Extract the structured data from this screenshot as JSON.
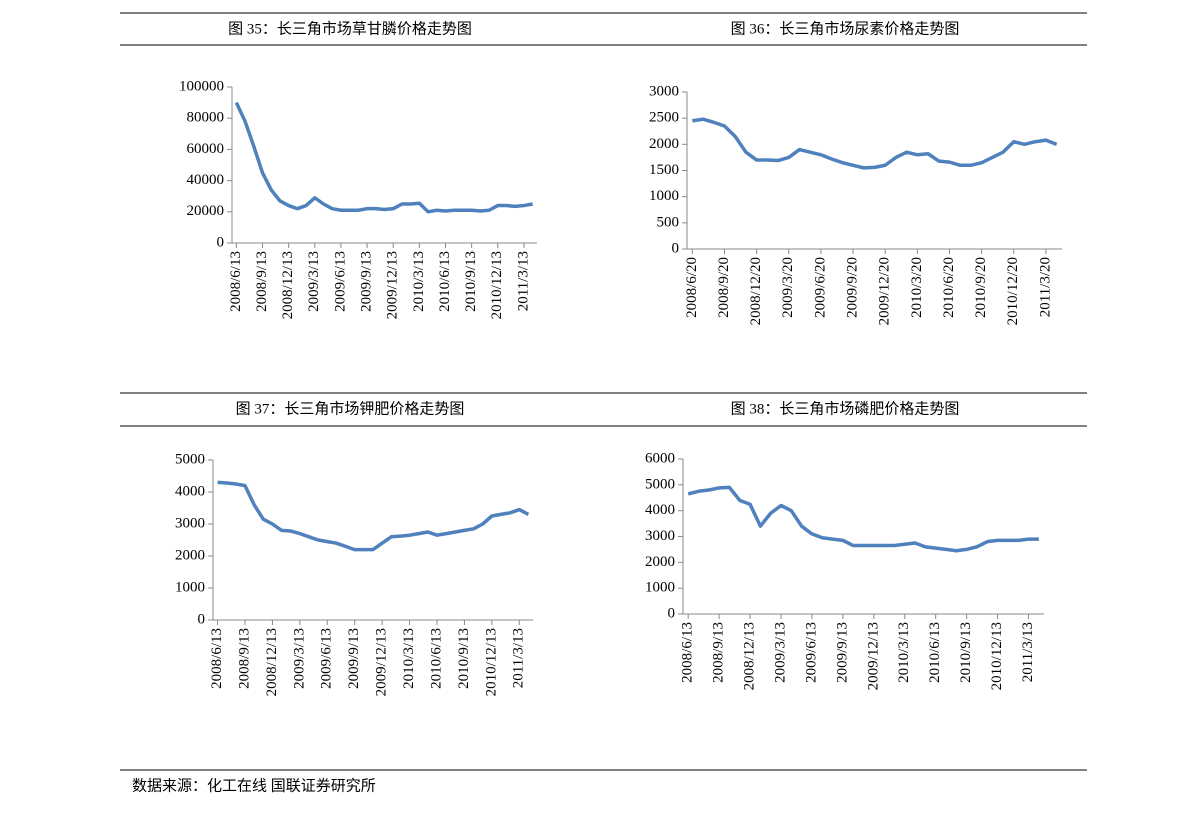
{
  "chart_data": [
    {
      "type": "line",
      "title": "图 35：长三角市场草甘膦价格走势图",
      "color": "#4f81bd",
      "categories": [
        "2008/6/13",
        null,
        null,
        "2008/9/13",
        null,
        null,
        "2008/12/13",
        null,
        null,
        "2009/3/13",
        null,
        null,
        "2009/6/13",
        null,
        null,
        "2009/9/13",
        null,
        null,
        "2009/12/13",
        null,
        null,
        "2010/3/13",
        null,
        null,
        "2010/6/13",
        null,
        null,
        "2010/9/13",
        null,
        null,
        "2010/12/13",
        null,
        null,
        "2011/3/13",
        null
      ],
      "values": [
        90000,
        78000,
        62000,
        45000,
        34000,
        27000,
        24000,
        22000,
        24000,
        29000,
        25000,
        22000,
        21000,
        21000,
        21000,
        22000,
        22000,
        21500,
        22000,
        25000,
        25000,
        25500,
        20000,
        21000,
        20500,
        21000,
        21000,
        21000,
        20500,
        21000,
        24000,
        24000,
        23500,
        24000,
        25000
      ],
      "ylim": [
        0,
        100000
      ],
      "yticks": [
        0,
        20000,
        40000,
        60000,
        80000,
        100000
      ]
    },
    {
      "type": "line",
      "title": "图 36：长三角市场尿素价格走势图",
      "color": "#4f81bd",
      "categories": [
        "2008/6/20",
        null,
        null,
        "2008/9/20",
        null,
        null,
        "2008/12/20",
        null,
        null,
        "2009/3/20",
        null,
        null,
        "2009/6/20",
        null,
        null,
        "2009/9/20",
        null,
        null,
        "2009/12/20",
        null,
        null,
        "2010/3/20",
        null,
        null,
        "2010/6/20",
        null,
        null,
        "2010/9/20",
        null,
        null,
        "2010/12/20",
        null,
        null,
        "2011/3/20",
        null
      ],
      "values": [
        2450,
        2480,
        2420,
        2350,
        2150,
        1850,
        1700,
        1700,
        1690,
        1750,
        1900,
        1850,
        1800,
        1720,
        1650,
        1600,
        1550,
        1560,
        1600,
        1750,
        1850,
        1800,
        1820,
        1680,
        1660,
        1600,
        1600,
        1650,
        1750,
        1850,
        2050,
        2000,
        2050,
        2080,
        2000
      ],
      "ylim": [
        0,
        3000
      ],
      "yticks": [
        0,
        500,
        1000,
        1500,
        2000,
        2500,
        3000
      ]
    },
    {
      "type": "line",
      "title": "图 37：长三角市场钾肥价格走势图",
      "color": "#4f81bd",
      "categories": [
        "2008/6/13",
        null,
        null,
        "2008/9/13",
        null,
        null,
        "2008/12/13",
        null,
        null,
        "2009/3/13",
        null,
        null,
        "2009/6/13",
        null,
        null,
        "2009/9/13",
        null,
        null,
        "2009/12/13",
        null,
        null,
        "2010/3/13",
        null,
        null,
        "2010/6/13",
        null,
        null,
        "2010/9/13",
        null,
        null,
        "2010/12/13",
        null,
        null,
        "2011/3/13",
        null
      ],
      "values": [
        4300,
        4280,
        4250,
        4200,
        3600,
        3150,
        3000,
        2800,
        2780,
        2700,
        2600,
        2500,
        2450,
        2400,
        2300,
        2200,
        2200,
        2200,
        2400,
        2600,
        2620,
        2650,
        2700,
        2750,
        2650,
        2700,
        2750,
        2800,
        2850,
        3000,
        3250,
        3300,
        3350,
        3450,
        3300
      ],
      "ylim": [
        0,
        5000
      ],
      "yticks": [
        0,
        1000,
        2000,
        3000,
        4000,
        5000
      ]
    },
    {
      "type": "line",
      "title": "图 38：长三角市场磷肥价格走势图",
      "color": "#4f81bd",
      "categories": [
        "2008/6/13",
        null,
        null,
        "2008/9/13",
        null,
        null,
        "2008/12/13",
        null,
        null,
        "2009/3/13",
        null,
        null,
        "2009/6/13",
        null,
        null,
        "2009/9/13",
        null,
        null,
        "2009/12/13",
        null,
        null,
        "2010/3/13",
        null,
        null,
        "2010/6/13",
        null,
        null,
        "2010/9/13",
        null,
        null,
        "2010/12/13",
        null,
        null,
        "2011/3/13",
        null
      ],
      "values": [
        4650,
        4750,
        4800,
        4880,
        4900,
        4400,
        4250,
        3400,
        3900,
        4200,
        4000,
        3400,
        3100,
        2950,
        2900,
        2850,
        2650,
        2650,
        2650,
        2650,
        2650,
        2700,
        2750,
        2600,
        2550,
        2500,
        2450,
        2500,
        2600,
        2800,
        2850,
        2850,
        2850,
        2900,
        2900
      ],
      "ylim": [
        0,
        6000
      ],
      "yticks": [
        0,
        1000,
        2000,
        3000,
        4000,
        5000,
        6000
      ]
    }
  ],
  "source": "数据来源：化工在线 国联证券研究所"
}
